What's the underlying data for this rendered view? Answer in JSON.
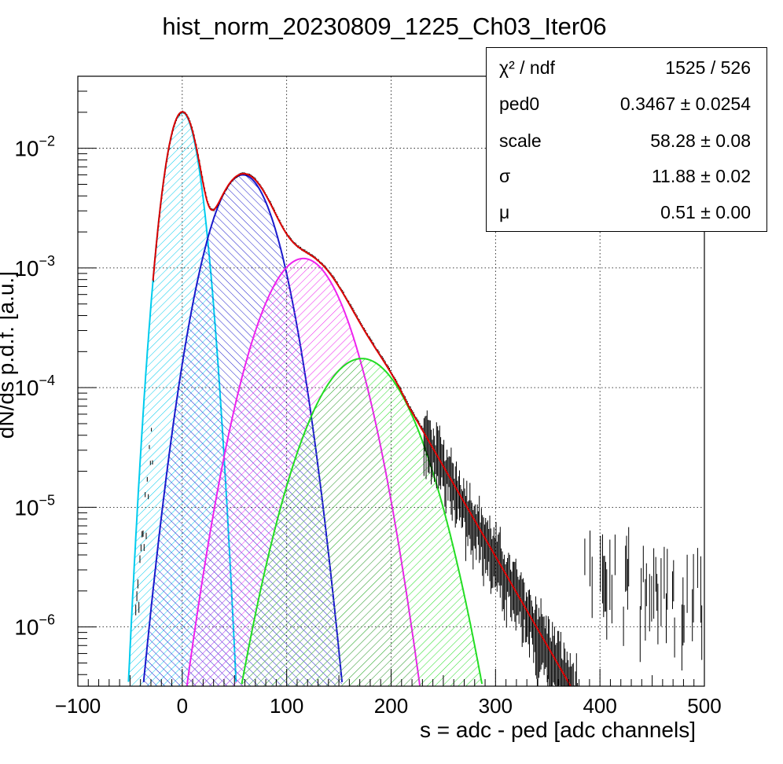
{
  "chart_data": {
    "type": "histogram-fit",
    "title": "hist_norm_20230809_1225_Ch03_Iter06",
    "xlabel": "s = adc - ped [adc channels]",
    "ylabel": "dN/ds p.d.f. [a.u.]",
    "xlim": [
      -100,
      500
    ],
    "ylim": [
      3.2e-07,
      0.04
    ],
    "yscale": "log",
    "grid": true,
    "x_ticks": [
      {
        "value": -100,
        "label": "−100"
      },
      {
        "value": 0,
        "label": "0"
      },
      {
        "value": 100,
        "label": "100"
      },
      {
        "value": 200,
        "label": "200"
      },
      {
        "value": 300,
        "label": "300"
      },
      {
        "value": 400,
        "label": "400"
      },
      {
        "value": 500,
        "label": "500"
      }
    ],
    "y_ticks": [
      {
        "value": 0.01,
        "base": "10",
        "exp": "−2"
      },
      {
        "value": 0.001,
        "base": "10",
        "exp": "−3"
      },
      {
        "value": 0.0001,
        "base": "10",
        "exp": "−4"
      },
      {
        "value": 1e-05,
        "base": "10",
        "exp": "−5"
      },
      {
        "value": 1e-06,
        "base": "10",
        "exp": "−6"
      }
    ],
    "components": [
      {
        "peak_n": 0,
        "mean": 0,
        "sigma": 11.0,
        "amplitude": 0.02,
        "color": "#00ccee",
        "hatch_angle": 45
      },
      {
        "peak_n": 1,
        "mean": 58,
        "sigma": 21.5,
        "amplitude": 0.006,
        "color": "#1a1acc",
        "hatch_angle": -45
      },
      {
        "peak_n": 2,
        "mean": 116,
        "sigma": 27.5,
        "amplitude": 0.0012,
        "color": "#ee22ee",
        "hatch_angle": 45
      },
      {
        "peak_n": 3,
        "mean": 172,
        "sigma": 32.5,
        "amplitude": 0.000175,
        "color": "#22dd22",
        "hatch_angle": 45
      }
    ],
    "fit_curve": {
      "color": "#dd0000",
      "tail_from": 180,
      "tail_to": 372,
      "tail_end_value": 3.2e-07
    },
    "histogram": {
      "color": "#000000",
      "range": [
        -45,
        500
      ],
      "bin_width": 1
    },
    "stats_box": [
      {
        "label": "χ² / ndf",
        "value": "1525 / 526"
      },
      {
        "label": "ped0",
        "value": "0.3467 ± 0.0254"
      },
      {
        "label": "scale",
        "value": "58.28 ± 0.08"
      },
      {
        "label": "σ",
        "value": "11.88 ± 0.02"
      },
      {
        "label": "μ",
        "value": "0.51 ± 0.00"
      }
    ]
  }
}
